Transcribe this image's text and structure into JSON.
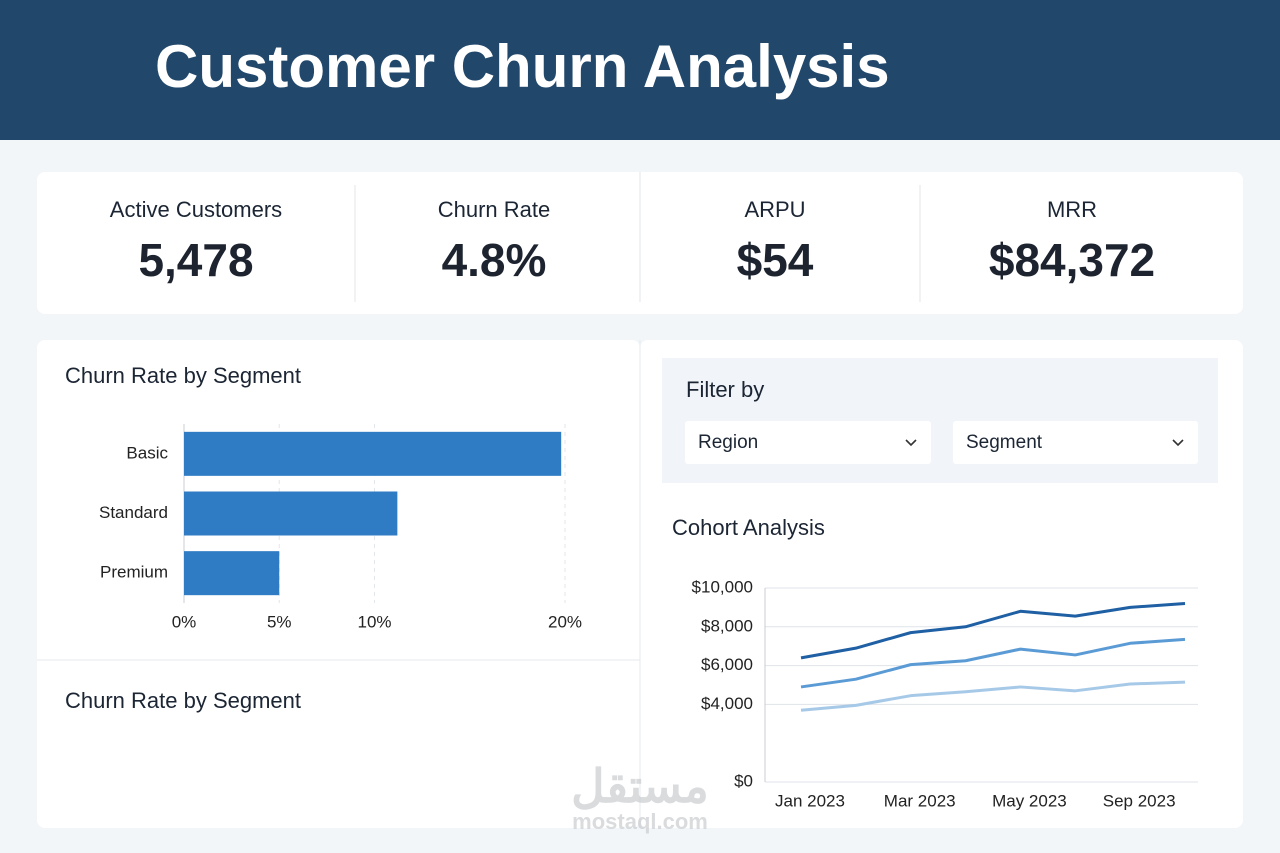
{
  "header": {
    "title": "Customer Churn Analysis"
  },
  "kpis": [
    {
      "label": "Active Customers",
      "value": "5,478"
    },
    {
      "label": "Churn Rate",
      "value": "4.8%"
    },
    {
      "label": "ARPU",
      "value": "$54"
    },
    {
      "label": "MRR",
      "value": "$84,372"
    }
  ],
  "second_panel": {
    "title": "Churn Rate by Segment"
  },
  "filters": {
    "title": "Filter by",
    "dropdowns": [
      "Region",
      "Segment"
    ]
  },
  "watermark": {
    "logo": "مستقل",
    "url": "mostaql.com"
  },
  "chart_data": [
    {
      "type": "bar",
      "title": "Churn Rate by Segment",
      "orientation": "horizontal",
      "categories": [
        "Basic",
        "Standard",
        "Premium"
      ],
      "values": [
        19.8,
        11.2,
        5.0
      ],
      "color": "#2f7bc4",
      "xlim": [
        0,
        20
      ],
      "xticks": [
        {
          "value": 0,
          "label": "0%"
        },
        {
          "value": 5,
          "label": "5%"
        },
        {
          "value": 10,
          "label": "10%"
        },
        {
          "value": 20,
          "label": "20%"
        }
      ],
      "grid": true
    },
    {
      "type": "line",
      "title": "Cohort Analysis",
      "categories": [
        "Jan 2023",
        null,
        "Mar 2023",
        null,
        "May 2023",
        null,
        "Sep 2023",
        null
      ],
      "series": [
        {
          "color": "#1f5fa3",
          "values": [
            6400,
            6900,
            7700,
            8000,
            8800,
            8550,
            9000,
            9200
          ]
        },
        {
          "color": "#5b9bd5",
          "values": [
            4900,
            5300,
            6050,
            6250,
            6850,
            6550,
            7150,
            7350
          ]
        },
        {
          "color": "#a7c9e8",
          "values": [
            3700,
            3950,
            4450,
            4650,
            4900,
            4700,
            5050,
            5150
          ]
        }
      ],
      "ylim": [
        0,
        10000
      ],
      "yticks": [
        {
          "value": 0,
          "label": "$0"
        },
        {
          "value": 4000,
          "label": "$4,000"
        },
        {
          "value": 6000,
          "label": "$6,000"
        },
        {
          "value": 8000,
          "label": "$8,000"
        },
        {
          "value": 10000,
          "label": "$10,000"
        }
      ],
      "grid": true
    }
  ]
}
